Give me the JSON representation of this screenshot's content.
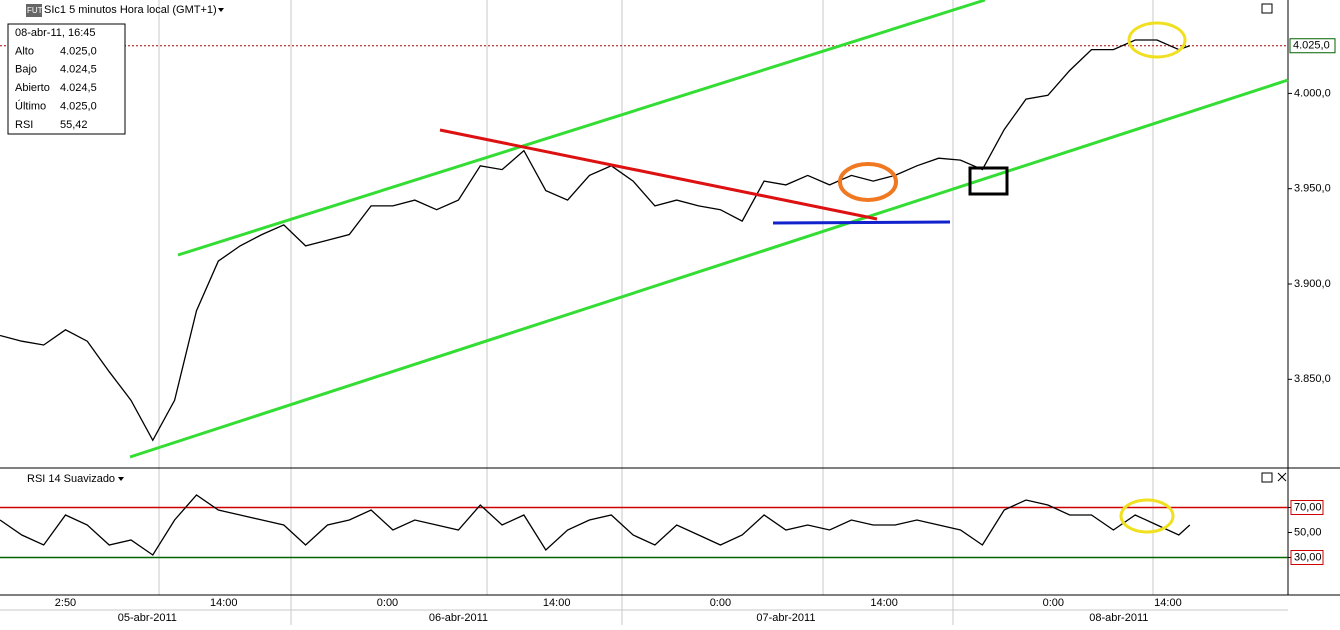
{
  "header": {
    "icon": "FUT",
    "title": "SIc1 5 minutos Hora local (GMT+1)"
  },
  "info_box": {
    "rows": [
      [
        "08-abr-11, 16:45"
      ],
      [
        "Alto",
        "4.025,0"
      ],
      [
        "Bajo",
        "4.024,5"
      ],
      [
        "Abierto",
        "4.024,5"
      ],
      [
        "Último",
        "4.025,0"
      ],
      [
        "RSI",
        "55,42"
      ]
    ]
  },
  "chart_data": [
    {
      "type": "line",
      "xlim": [
        0,
        236
      ],
      "ylim": [
        3804,
        4049
      ],
      "yticks": [
        {
          "value": 4000,
          "label": "4.000,0"
        },
        {
          "value": 3950,
          "label": "3.950,0"
        },
        {
          "value": 3900,
          "label": "3.900,0"
        },
        {
          "value": 3850,
          "label": "3.850,0"
        }
      ],
      "current_price": {
        "value": 4025,
        "label": "4.025,0"
      },
      "x": [
        0,
        4,
        8,
        12,
        16,
        20,
        24,
        28,
        32,
        36,
        40,
        44,
        48,
        52,
        56,
        60,
        64,
        68,
        72,
        76,
        80,
        84,
        88,
        92,
        96,
        100,
        104,
        108,
        112,
        116,
        120,
        124,
        128,
        132,
        136,
        140,
        144,
        148,
        152,
        156,
        160,
        164,
        168,
        172,
        176,
        180,
        184,
        188,
        192,
        196,
        200,
        204,
        208,
        212,
        216,
        218
      ],
      "series": [
        {
          "color": "#000000",
          "values": [
            3873,
            3870,
            3868,
            3876,
            3870,
            3854,
            3839,
            3818,
            3839,
            3886,
            3912,
            3920,
            3926,
            3931,
            3920,
            3923,
            3926,
            3941,
            3941,
            3944,
            3939,
            3944,
            3962,
            3960,
            3970,
            3949,
            3944,
            3957,
            3962,
            3954,
            3941,
            3944,
            3941,
            3939,
            3933,
            3954,
            3952,
            3957,
            3952,
            3957,
            3954,
            3957,
            3962,
            3966,
            3965,
            3960,
            3981,
            3997,
            3999,
            4012,
            4023,
            4023,
            4028,
            4028,
            4023,
            4025
          ]
        }
      ]
    },
    {
      "type": "line",
      "title": "RSI 14 Suavizado",
      "xlim": [
        0,
        236
      ],
      "ylim": [
        0,
        100
      ],
      "yticks": [
        {
          "value": 70,
          "label": "70,00"
        },
        {
          "value": 50,
          "label": "50,00"
        },
        {
          "value": 30,
          "label": "30,00"
        }
      ],
      "xticks": [
        {
          "value": 12,
          "label": "2:50"
        },
        {
          "value": 41,
          "label": "14:00"
        },
        {
          "value": 71,
          "label": "0:00"
        },
        {
          "value": 102,
          "label": "14:00"
        },
        {
          "value": 132,
          "label": "0:00"
        },
        {
          "value": 162,
          "label": "14:00"
        },
        {
          "value": 193,
          "label": "0:00"
        },
        {
          "value": 214,
          "label": "14:00"
        }
      ],
      "date_ticks": [
        {
          "value": 27,
          "label": "05-abr-2011"
        },
        {
          "value": 84,
          "label": "06-abr-2011"
        },
        {
          "value": 144,
          "label": "07-abr-2011"
        },
        {
          "value": 205,
          "label": "08-abr-2011"
        }
      ],
      "x": [
        0,
        4,
        8,
        12,
        16,
        20,
        24,
        28,
        32,
        36,
        40,
        44,
        48,
        52,
        56,
        60,
        64,
        68,
        72,
        76,
        80,
        84,
        88,
        92,
        96,
        100,
        104,
        108,
        112,
        116,
        120,
        124,
        128,
        132,
        136,
        140,
        144,
        148,
        152,
        156,
        160,
        164,
        168,
        172,
        176,
        180,
        184,
        188,
        192,
        196,
        200,
        204,
        208,
        212,
        216,
        218
      ],
      "series": [
        {
          "color": "#000000",
          "values": [
            60,
            48,
            40,
            64,
            56,
            40,
            44,
            32,
            60,
            80,
            68,
            64,
            60,
            56,
            40,
            56,
            60,
            68,
            52,
            60,
            56,
            52,
            72,
            56,
            64,
            36,
            52,
            60,
            64,
            48,
            40,
            56,
            48,
            40,
            48,
            64,
            52,
            56,
            52,
            60,
            56,
            56,
            60,
            56,
            52,
            40,
            68,
            76,
            72,
            64,
            64,
            52,
            64,
            56,
            48,
            56
          ]
        }
      ]
    }
  ]
}
